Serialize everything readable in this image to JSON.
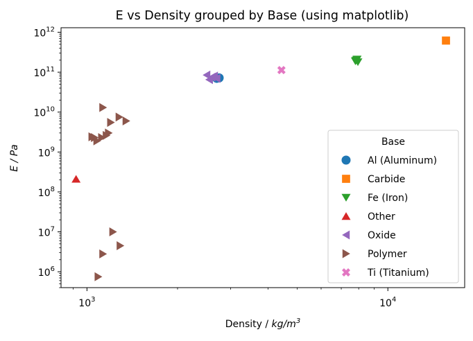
{
  "chart_data": {
    "type": "scatter",
    "title": "E vs Density grouped by Base (using matplotlib)",
    "xlabel": "Density / ",
    "xlabel_unit": "kg/m",
    "xlabel_exp": "3",
    "ylabel": "E / Pa",
    "xscale": "log",
    "yscale": "log",
    "xlim": [
      820,
      18000
    ],
    "ylim": [
      400000,
      1300000000000
    ],
    "x_ticks": [
      {
        "value": 1000,
        "base": "10",
        "exp": "3"
      },
      {
        "value": 10000,
        "base": "10",
        "exp": "4"
      }
    ],
    "y_ticks": [
      {
        "value": 1000000,
        "base": "10",
        "exp": "6"
      },
      {
        "value": 10000000,
        "base": "10",
        "exp": "7"
      },
      {
        "value": 100000000,
        "base": "10",
        "exp": "8"
      },
      {
        "value": 1000000000,
        "base": "10",
        "exp": "9"
      },
      {
        "value": 10000000000,
        "base": "10",
        "exp": "10"
      },
      {
        "value": 100000000000,
        "base": "10",
        "exp": "11"
      },
      {
        "value": 1000000000000,
        "base": "10",
        "exp": "12"
      }
    ],
    "grid": false,
    "legend": {
      "title": "Base",
      "position": "lower-right"
    },
    "series": [
      {
        "name": "Al (Aluminum)",
        "color": "#1f77b4",
        "marker": "circle",
        "points": [
          [
            2750,
            72000000000
          ],
          [
            2700,
            70000000000
          ]
        ]
      },
      {
        "name": "Carbide",
        "color": "#ff7f0e",
        "marker": "square",
        "points": [
          [
            15600,
            620000000000
          ]
        ]
      },
      {
        "name": "Fe (Iron)",
        "color": "#2ca02c",
        "marker": "triangle-down",
        "points": [
          [
            7850,
            200000000000
          ],
          [
            7900,
            210000000000
          ],
          [
            7800,
            190000000000
          ],
          [
            7950,
            180000000000
          ]
        ]
      },
      {
        "name": "Other",
        "color": "#d62728",
        "marker": "triangle-up",
        "points": [
          [
            920,
            210000000
          ]
        ]
      },
      {
        "name": "Oxide",
        "color": "#9467bd",
        "marker": "triangle-left",
        "points": [
          [
            2500,
            85000000000
          ],
          [
            2600,
            75000000000
          ],
          [
            2550,
            65000000000
          ],
          [
            2650,
            80000000000
          ],
          [
            2700,
            70000000000
          ]
        ]
      },
      {
        "name": "Polymer",
        "color": "#8c564b",
        "marker": "triangle-right",
        "points": [
          [
            1130,
            13000000000
          ],
          [
            1280,
            7500000000
          ],
          [
            1350,
            6000000000
          ],
          [
            1200,
            5500000000
          ],
          [
            1180,
            3000000000
          ],
          [
            1160,
            2600000000
          ],
          [
            1120,
            2300000000
          ],
          [
            1060,
            2300000000
          ],
          [
            1040,
            2400000000
          ],
          [
            1080,
            1900000000
          ],
          [
            1220,
            10000000
          ],
          [
            1290,
            4500000
          ],
          [
            1130,
            2800000
          ],
          [
            1090,
            750000
          ]
        ]
      },
      {
        "name": "Ti (Titanium)",
        "color": "#e377c2",
        "marker": "x",
        "points": [
          [
            4430,
            113000000000
          ]
        ]
      }
    ]
  }
}
